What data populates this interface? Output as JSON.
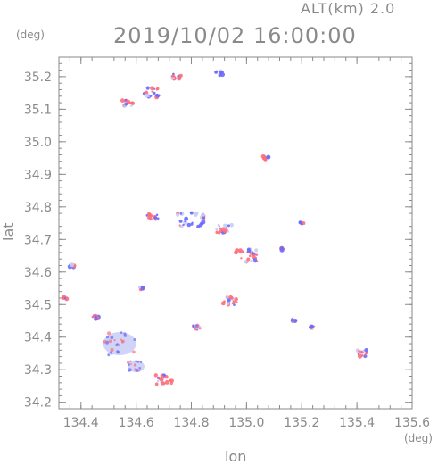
{
  "header": {
    "altitude_label": "ALT(km) 2.0",
    "timestamp": "2019/10/02 16:00:00"
  },
  "chart_data": {
    "type": "scatter",
    "xlabel": "lon",
    "ylabel": "lat",
    "x_unit": "(deg)",
    "y_unit": "(deg)",
    "xlim": [
      134.32,
      135.6
    ],
    "ylim": [
      34.18,
      35.26
    ],
    "xticks": [
      "134.4",
      "134.6",
      "134.8",
      "135.0",
      "135.2",
      "135.4",
      "135.6"
    ],
    "yticks": [
      "34.2",
      "34.3",
      "34.4",
      "34.5",
      "34.6",
      "34.7",
      "34.8",
      "34.9",
      "35.0",
      "35.1",
      "35.2"
    ],
    "grid": false,
    "colors": {
      "positive": "#ff6e7a",
      "negative": "#6a6aff",
      "neutral": "#c8ccf4",
      "axis": "#8a8a8a"
    },
    "clusters": [
      {
        "lon": 134.54,
        "lat": 34.38,
        "extent": 0.06,
        "sign": "neutral"
      },
      {
        "lon": 134.6,
        "lat": 34.31,
        "extent": 0.03,
        "sign": "neutral"
      },
      {
        "lon": 134.7,
        "lat": 34.27,
        "extent": 0.03,
        "sign": "positive"
      },
      {
        "lon": 134.45,
        "lat": 34.46,
        "extent": 0.015,
        "sign": "positive"
      },
      {
        "lon": 134.34,
        "lat": 34.52,
        "extent": 0.01,
        "sign": "positive"
      },
      {
        "lon": 134.37,
        "lat": 34.62,
        "extent": 0.01,
        "sign": "negative"
      },
      {
        "lon": 134.82,
        "lat": 34.43,
        "extent": 0.015,
        "sign": "neutral"
      },
      {
        "lon": 134.94,
        "lat": 34.51,
        "extent": 0.025,
        "sign": "positive"
      },
      {
        "lon": 134.62,
        "lat": 34.55,
        "extent": 0.008,
        "sign": "negative"
      },
      {
        "lon": 134.66,
        "lat": 34.77,
        "extent": 0.02,
        "sign": "positive"
      },
      {
        "lon": 134.8,
        "lat": 34.76,
        "extent": 0.05,
        "sign": "negative"
      },
      {
        "lon": 134.92,
        "lat": 34.73,
        "extent": 0.03,
        "sign": "positive"
      },
      {
        "lon": 135.0,
        "lat": 34.65,
        "extent": 0.04,
        "sign": "positive"
      },
      {
        "lon": 135.07,
        "lat": 34.95,
        "extent": 0.01,
        "sign": "negative"
      },
      {
        "lon": 134.66,
        "lat": 35.15,
        "extent": 0.03,
        "sign": "negative"
      },
      {
        "lon": 134.57,
        "lat": 35.12,
        "extent": 0.02,
        "sign": "positive"
      },
      {
        "lon": 134.75,
        "lat": 35.2,
        "extent": 0.02,
        "sign": "positive"
      },
      {
        "lon": 134.9,
        "lat": 35.21,
        "extent": 0.015,
        "sign": "negative"
      },
      {
        "lon": 135.42,
        "lat": 34.35,
        "extent": 0.02,
        "sign": "positive"
      },
      {
        "lon": 135.17,
        "lat": 34.45,
        "extent": 0.008,
        "sign": "negative"
      },
      {
        "lon": 135.24,
        "lat": 34.43,
        "extent": 0.008,
        "sign": "negative"
      },
      {
        "lon": 135.13,
        "lat": 34.67,
        "extent": 0.006,
        "sign": "negative"
      },
      {
        "lon": 135.2,
        "lat": 34.75,
        "extent": 0.006,
        "sign": "negative"
      }
    ]
  }
}
